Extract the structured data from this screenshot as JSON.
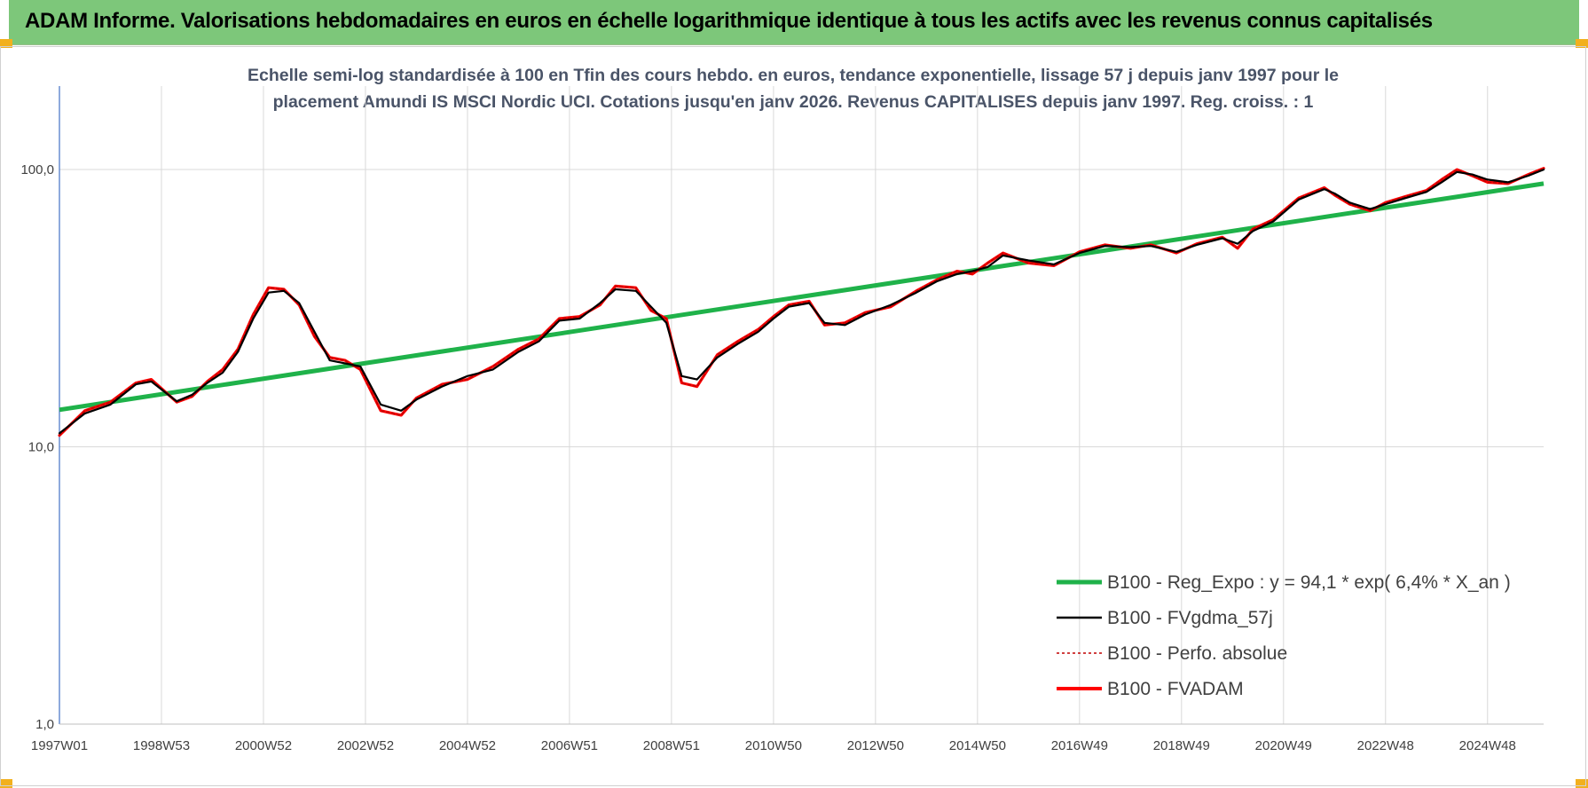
{
  "header": {
    "title": "ADAM Informe. Valorisations hebdomadaires en euros en échelle logarithmique identique à tous les actifs avec les revenus connus capitalisés"
  },
  "colors": {
    "banner": "#7dc77a",
    "corner": "#f2b01e",
    "regression": "#1fb24a",
    "moving_average": "#000000",
    "perf_absolue": "#c00000",
    "fvadam": "#ff0000",
    "subtitle": "#4a5468"
  },
  "chart_data": {
    "type": "line",
    "title": "Echelle semi-log standardisée à 100 en Tfin des cours hebdo. en euros, tendance exponentielle, lissage 57 j depuis janv 1997 pour le placement Amundi IS MSCI Nordic UCI. Cotations jusqu'en janv 2026. Revenus CAPITALISES depuis janv 1997. Reg. croiss. : 1",
    "title_lines": [
      "Echelle semi-log standardisée à 100 en Tfin des cours hebdo. en euros, tendance exponentielle, lissage 57 j depuis janv 1997 pour le",
      "placement Amundi IS MSCI Nordic UCI. Cotations jusqu'en janv 2026. Revenus CAPITALISES depuis janv 1997. Reg.  croiss. : 1"
    ],
    "y_scale": "log",
    "ylim": [
      1,
      200
    ],
    "y_ticks": [
      1,
      10,
      100
    ],
    "y_tick_labels": [
      "1,0",
      "10,0",
      "100,0"
    ],
    "xlim": [
      1997.0,
      2026.1
    ],
    "x_tick_labels": [
      "1997W01",
      "1998W53",
      "2000W52",
      "2002W52",
      "2004W52",
      "2006W51",
      "2008W51",
      "2010W50",
      "2012W50",
      "2014W50",
      "2016W49",
      "2018W49",
      "2020W49",
      "2022W48",
      "2024W48"
    ],
    "x_tick_years": [
      1997.0,
      1999.0,
      2001.0,
      2003.0,
      2005.0,
      2007.0,
      2009.0,
      2011.0,
      2013.0,
      2015.0,
      2017.0,
      2019.0,
      2021.0,
      2023.0,
      2025.0
    ],
    "grid": true,
    "legend_position": "bottom-right",
    "regression": {
      "name": "B100 - Reg_Expo : y = 94,1 * exp( 6,4% *  X_an )",
      "start": [
        1997.0,
        13.6
      ],
      "end": [
        2026.1,
        89.0
      ]
    },
    "series": [
      {
        "name": "B100 - FVgdma_57j",
        "x": [
          1997.0,
          1997.5,
          1998.0,
          1998.5,
          1998.8,
          1999.3,
          1999.6,
          1999.9,
          2000.2,
          2000.5,
          2000.8,
          2001.1,
          2001.4,
          2001.7,
          2002.0,
          2002.3,
          2002.6,
          2002.9,
          2003.3,
          2003.7,
          2004.0,
          2004.5,
          2005.0,
          2005.5,
          2006.0,
          2006.4,
          2006.8,
          2007.2,
          2007.6,
          2007.9,
          2008.3,
          2008.6,
          2008.9,
          2009.2,
          2009.5,
          2009.9,
          2010.3,
          2010.7,
          2011.0,
          2011.3,
          2011.7,
          2012.0,
          2012.4,
          2012.8,
          2013.3,
          2013.8,
          2014.2,
          2014.6,
          2014.9,
          2015.2,
          2015.5,
          2016.0,
          2016.5,
          2017.0,
          2017.5,
          2018.0,
          2018.4,
          2018.9,
          2019.3,
          2019.8,
          2020.1,
          2020.4,
          2020.8,
          2021.3,
          2021.8,
          2022.0,
          2022.3,
          2022.7,
          2023.0,
          2023.4,
          2023.8,
          2024.1,
          2024.4,
          2024.7,
          2025.0,
          2025.4,
          2025.8,
          2026.1
        ],
        "values": [
          11.2,
          13.2,
          14.2,
          16.8,
          17.2,
          14.6,
          15.4,
          17.0,
          18.5,
          22.0,
          29.0,
          36.0,
          36.5,
          33.0,
          26.0,
          20.5,
          20.0,
          19.5,
          14.2,
          13.5,
          14.8,
          16.5,
          18.0,
          19.0,
          22.0,
          24.0,
          28.5,
          29.0,
          33.0,
          37.0,
          36.5,
          32.0,
          28.0,
          18.0,
          17.5,
          21.0,
          23.5,
          26.0,
          29.0,
          32.0,
          33.0,
          28.0,
          27.5,
          30.0,
          32.5,
          36.0,
          39.5,
          42.0,
          43.0,
          44.5,
          49.0,
          47.0,
          45.5,
          50.0,
          53.0,
          52.5,
          53.0,
          50.5,
          53.5,
          56.5,
          54.0,
          60.0,
          65.0,
          78.0,
          85.0,
          82.0,
          76.0,
          72.0,
          75.0,
          79.0,
          83.0,
          90.0,
          98.0,
          96.0,
          92.0,
          90.0,
          95.0,
          100.0
        ]
      },
      {
        "name": "B100 - Perfo. absolue",
        "x": [
          1997.0,
          1997.5,
          1998.0,
          1998.5,
          1998.8,
          1999.3,
          1999.6,
          1999.9,
          2000.2,
          2000.5,
          2000.8,
          2001.1,
          2001.4,
          2001.7,
          2002.0,
          2002.3,
          2002.6,
          2002.9,
          2003.3,
          2003.7,
          2004.0,
          2004.5,
          2005.0,
          2005.5,
          2006.0,
          2006.4,
          2006.8,
          2007.2,
          2007.6,
          2007.9,
          2008.3,
          2008.6,
          2008.9,
          2009.2,
          2009.5,
          2009.9,
          2010.3,
          2010.7,
          2011.0,
          2011.3,
          2011.7,
          2012.0,
          2012.4,
          2012.8,
          2013.3,
          2013.8,
          2014.2,
          2014.6,
          2014.9,
          2015.2,
          2015.5,
          2016.0,
          2016.5,
          2017.0,
          2017.5,
          2018.0,
          2018.4,
          2018.9,
          2019.3,
          2019.8,
          2020.1,
          2020.4,
          2020.8,
          2021.3,
          2021.8,
          2022.0,
          2022.3,
          2022.7,
          2023.0,
          2023.4,
          2023.8,
          2024.1,
          2024.4,
          2024.7,
          2025.0,
          2025.4,
          2025.8,
          2026.1
        ],
        "values": [
          11.0,
          13.5,
          14.5,
          17.0,
          17.5,
          14.5,
          15.2,
          17.2,
          19.0,
          22.5,
          30.0,
          37.5,
          37.0,
          32.5,
          25.0,
          21.0,
          20.5,
          19.0,
          13.5,
          13.0,
          15.0,
          16.8,
          17.5,
          19.5,
          22.5,
          24.5,
          29.0,
          29.5,
          32.5,
          38.0,
          37.5,
          31.0,
          29.0,
          17.0,
          16.5,
          21.5,
          24.0,
          26.5,
          29.5,
          32.5,
          33.5,
          27.5,
          28.0,
          30.5,
          32.0,
          36.5,
          40.0,
          43.0,
          42.0,
          46.0,
          50.0,
          46.0,
          45.0,
          50.5,
          53.5,
          52.0,
          53.5,
          50.0,
          54.0,
          57.0,
          52.0,
          61.0,
          66.0,
          79.0,
          86.0,
          81.0,
          75.0,
          71.0,
          76.0,
          80.0,
          84.0,
          92.0,
          100.0,
          95.0,
          90.0,
          89.0,
          96.0,
          101.0
        ]
      },
      {
        "name": "B100 - FVADAM",
        "x": [
          1997.0,
          1997.5,
          1998.0,
          1998.5,
          1998.8,
          1999.3,
          1999.6,
          1999.9,
          2000.2,
          2000.5,
          2000.8,
          2001.1,
          2001.4,
          2001.7,
          2002.0,
          2002.3,
          2002.6,
          2002.9,
          2003.3,
          2003.7,
          2004.0,
          2004.5,
          2005.0,
          2005.5,
          2006.0,
          2006.4,
          2006.8,
          2007.2,
          2007.6,
          2007.9,
          2008.3,
          2008.6,
          2008.9,
          2009.2,
          2009.5,
          2009.9,
          2010.3,
          2010.7,
          2011.0,
          2011.3,
          2011.7,
          2012.0,
          2012.4,
          2012.8,
          2013.3,
          2013.8,
          2014.2,
          2014.6,
          2014.9,
          2015.2,
          2015.5,
          2016.0,
          2016.5,
          2017.0,
          2017.5,
          2018.0,
          2018.4,
          2018.9,
          2019.3,
          2019.8,
          2020.1,
          2020.4,
          2020.8,
          2021.3,
          2021.8,
          2022.0,
          2022.3,
          2022.7,
          2023.0,
          2023.4,
          2023.8,
          2024.1,
          2024.4,
          2024.7,
          2025.0,
          2025.4,
          2025.8,
          2026.1
        ],
        "values": [
          11.0,
          13.5,
          14.5,
          17.0,
          17.5,
          14.5,
          15.2,
          17.2,
          19.0,
          22.5,
          30.0,
          37.5,
          37.0,
          32.5,
          25.0,
          21.0,
          20.5,
          19.0,
          13.5,
          13.0,
          15.0,
          16.8,
          17.5,
          19.5,
          22.5,
          24.5,
          29.0,
          29.5,
          32.5,
          38.0,
          37.5,
          31.0,
          29.0,
          17.0,
          16.5,
          21.5,
          24.0,
          26.5,
          29.5,
          32.5,
          33.5,
          27.5,
          28.0,
          30.5,
          32.0,
          36.5,
          40.0,
          43.0,
          42.0,
          46.0,
          50.0,
          46.0,
          45.0,
          50.5,
          53.5,
          52.0,
          53.5,
          50.0,
          54.0,
          57.0,
          52.0,
          61.0,
          66.0,
          79.0,
          86.0,
          81.0,
          75.0,
          71.0,
          76.0,
          80.0,
          84.0,
          92.0,
          100.0,
          95.0,
          90.0,
          89.0,
          96.0,
          101.0
        ]
      }
    ]
  }
}
